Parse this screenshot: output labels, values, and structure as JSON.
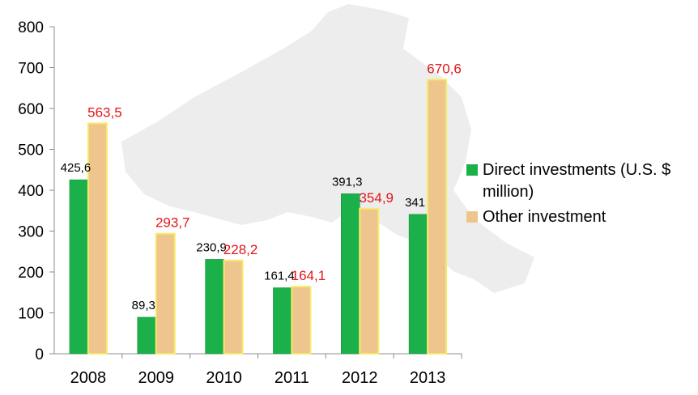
{
  "colors": {
    "direct": "#1bb04a",
    "direct_edge": "#118a36",
    "other": "#efc58e",
    "other_edge": "#f7ea6a",
    "other_label": "#e3151b",
    "background_map": "#ededed",
    "axis": "#8c8c8c"
  },
  "chart_data": {
    "type": "bar",
    "categories": [
      "2008",
      "2009",
      "2010",
      "2011",
      "2012",
      "2013"
    ],
    "series": [
      {
        "name": "Direct investments (U.S. $ million)",
        "values": [
          425.6,
          89.3,
          230.9,
          161.4,
          391.3,
          341
        ],
        "labels": [
          "425,6",
          "89,3",
          "230,9",
          "161,4",
          "391,3",
          "341"
        ]
      },
      {
        "name": "Other investment",
        "values": [
          563.5,
          293.7,
          228.2,
          164.1,
          354.9,
          670.6
        ],
        "labels": [
          "563,5",
          "293,7",
          "228,2",
          "164,1",
          "354,9",
          "670,6"
        ]
      }
    ],
    "y_ticks": [
      "0",
      "100",
      "200",
      "300",
      "400",
      "500",
      "600",
      "700",
      "800"
    ],
    "ylim": [
      0,
      800
    ],
    "grid": false,
    "legend_position": "right",
    "title": "",
    "xlabel": "",
    "ylabel": ""
  }
}
